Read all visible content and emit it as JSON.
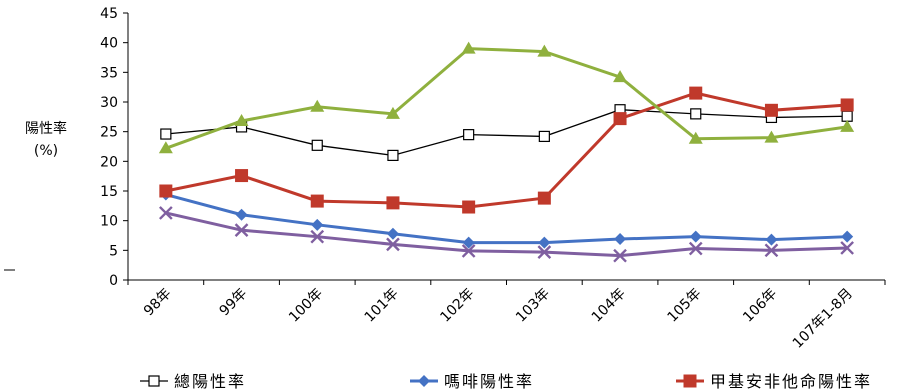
{
  "chart_data": {
    "type": "line",
    "ylabel": "陽性率(%)",
    "ylabel_lines": [
      "陽性率",
      "(%)"
    ],
    "ylim": [
      0,
      45
    ],
    "yticks": [
      0,
      5,
      10,
      15,
      20,
      25,
      30,
      35,
      40,
      45
    ],
    "categories": [
      "98年",
      "99年",
      "100年",
      "101年",
      "102年",
      "103年",
      "104年",
      "105年",
      "106年",
      "107年1-8月"
    ],
    "grid": false,
    "legend_position": "bottom",
    "series": [
      {
        "name": "總陽性率",
        "color": "#000000",
        "marker": "square-open",
        "values": [
          24.6,
          25.8,
          22.7,
          21.0,
          24.5,
          24.2,
          28.7,
          28.0,
          27.4,
          27.6
        ]
      },
      {
        "name": "嗎啡陽性率",
        "color": "#4472C4",
        "marker": "diamond",
        "values": [
          14.4,
          11.0,
          9.3,
          7.8,
          6.3,
          6.3,
          6.9,
          7.3,
          6.8,
          7.3
        ]
      },
      {
        "name": "甲基安非他命陽性率",
        "color": "#C0392B",
        "marker": "square",
        "values": [
          15.0,
          17.6,
          13.3,
          13.0,
          12.3,
          13.8,
          27.2,
          31.5,
          28.6,
          29.5
        ]
      },
      {
        "name": "",
        "color": "#8FB03E",
        "marker": "triangle",
        "values": [
          22.2,
          26.8,
          29.2,
          28.0,
          39.0,
          38.5,
          34.2,
          23.8,
          24.0,
          25.8
        ]
      },
      {
        "name": "",
        "color": "#7F5FA0",
        "marker": "x",
        "values": [
          11.3,
          8.4,
          7.3,
          6.0,
          4.9,
          4.7,
          4.1,
          5.3,
          5.0,
          5.4
        ]
      }
    ]
  }
}
